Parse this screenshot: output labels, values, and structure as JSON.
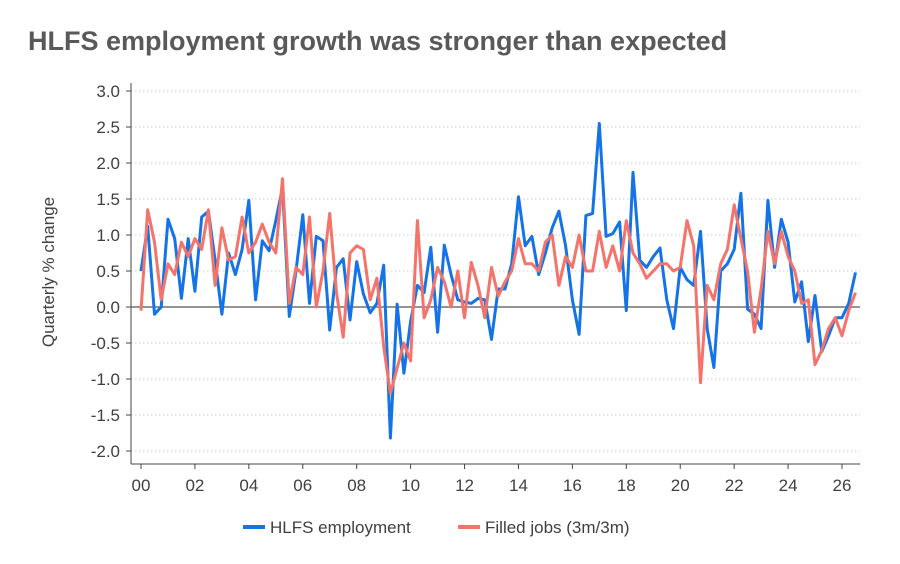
{
  "chart_data": {
    "type": "line",
    "title": "HLFS employment growth was stronger than expected",
    "ylabel": "Quarterly % change",
    "xlabel": "",
    "ylim": [
      -2.0,
      3.0
    ],
    "yticks": [
      "3.0",
      "2.5",
      "2.0",
      "1.5",
      "1.0",
      "0.5",
      "0.0",
      "-0.5",
      "-1.0",
      "-1.5",
      "-2.0"
    ],
    "ytick_values": [
      3.0,
      2.5,
      2.0,
      1.5,
      1.0,
      0.5,
      0.0,
      -0.5,
      -1.0,
      -1.5,
      -2.0
    ],
    "xlim": [
      2000,
      2026.5
    ],
    "xticks": [
      "00",
      "02",
      "04",
      "06",
      "08",
      "10",
      "12",
      "14",
      "16",
      "18",
      "20",
      "22",
      "24",
      "26"
    ],
    "xtick_values": [
      2000,
      2002,
      2004,
      2006,
      2008,
      2010,
      2012,
      2014,
      2016,
      2018,
      2020,
      2022,
      2024,
      2026
    ],
    "grid": "horizontal dotted",
    "legend_position": "bottom",
    "x_start": 2000,
    "x_step": 0.25,
    "series": [
      {
        "name": "HLFS employment",
        "color": "#1473E6",
        "values": [
          0.5,
          1.12,
          -0.1,
          0.0,
          1.22,
          0.95,
          0.12,
          0.95,
          0.22,
          1.25,
          1.33,
          0.65,
          -0.1,
          0.75,
          0.45,
          0.8,
          1.48,
          0.1,
          0.92,
          0.78,
          1.2,
          1.66,
          -0.13,
          0.5,
          1.28,
          0.05,
          0.98,
          0.92,
          -0.32,
          0.55,
          0.67,
          -0.18,
          0.63,
          0.18,
          -0.08,
          0.05,
          0.58,
          -1.82,
          0.04,
          -0.92,
          -0.2,
          0.3,
          0.2,
          0.83,
          -0.35,
          0.86,
          0.45,
          0.1,
          0.07,
          0.05,
          0.12,
          0.1,
          -0.45,
          0.25,
          0.25,
          0.6,
          1.53,
          0.85,
          0.98,
          0.45,
          0.75,
          1.1,
          1.33,
          0.85,
          0.1,
          -0.38,
          1.27,
          1.3,
          2.55,
          0.98,
          1.02,
          1.18,
          -0.05,
          1.87,
          0.65,
          0.55,
          0.7,
          0.82,
          0.1,
          -0.3,
          0.55,
          0.38,
          0.3,
          1.05,
          -0.3,
          -0.84,
          0.5,
          0.6,
          0.8,
          1.58,
          -0.03,
          -0.1,
          -0.3,
          1.48,
          0.55,
          1.22,
          0.9,
          0.07,
          0.35,
          -0.48,
          0.16,
          -0.62,
          -0.4,
          -0.15,
          -0.15,
          0.05,
          0.48
        ]
      },
      {
        "name": "Filled jobs (3m/3m)",
        "color": "#F4736B",
        "values": [
          -0.05,
          1.35,
          0.9,
          0.1,
          0.6,
          0.45,
          0.9,
          0.7,
          0.95,
          0.8,
          1.35,
          0.3,
          1.1,
          0.65,
          0.7,
          1.25,
          0.75,
          0.9,
          1.15,
          0.9,
          0.75,
          1.78,
          0.05,
          0.55,
          0.45,
          1.25,
          0.0,
          0.5,
          1.3,
          0.2,
          -0.42,
          0.75,
          0.85,
          0.8,
          0.1,
          0.4,
          -0.55,
          -1.2,
          -0.85,
          -0.5,
          -0.75,
          1.2,
          -0.15,
          0.1,
          0.55,
          0.35,
          0.0,
          0.5,
          -0.15,
          0.62,
          0.3,
          -0.15,
          0.55,
          0.15,
          0.35,
          0.5,
          0.95,
          0.6,
          0.6,
          0.5,
          0.9,
          1.0,
          0.3,
          0.7,
          0.55,
          1.0,
          0.5,
          0.5,
          1.05,
          0.55,
          0.85,
          0.5,
          1.2,
          0.75,
          0.6,
          0.4,
          0.5,
          0.6,
          0.6,
          0.5,
          0.55,
          1.2,
          0.85,
          -1.05,
          0.3,
          0.1,
          0.6,
          0.8,
          1.42,
          0.95,
          0.5,
          -0.35,
          0.25,
          1.05,
          0.6,
          1.05,
          0.7,
          0.5,
          0.05,
          0.1,
          -0.8,
          -0.6,
          -0.3,
          -0.15,
          -0.4,
          -0.05,
          0.2
        ]
      }
    ]
  }
}
